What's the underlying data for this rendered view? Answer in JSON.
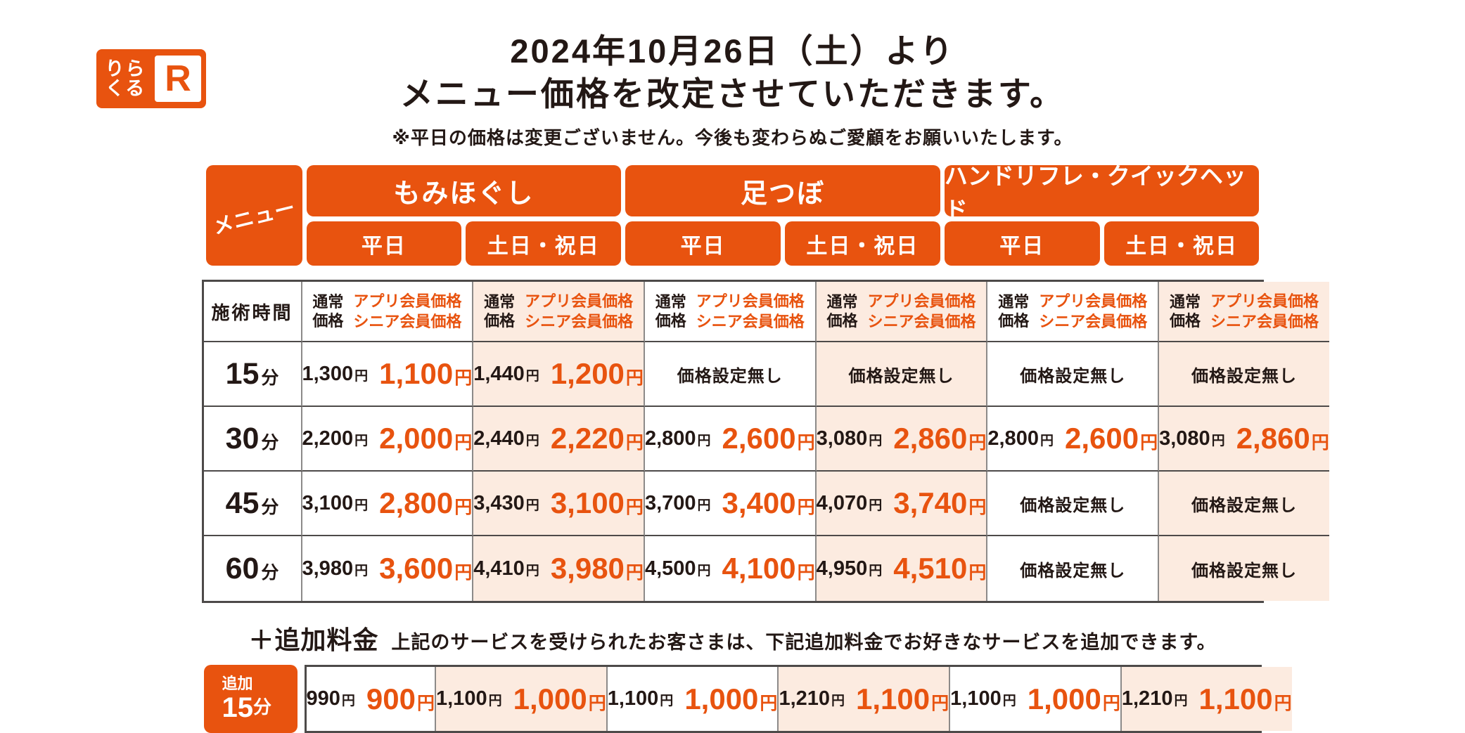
{
  "colors": {
    "accent_orange": "#e8530f",
    "peach_bg": "#fcebe0",
    "text_black": "#231815"
  },
  "logo": {
    "top": "りら",
    "bottom": "くる",
    "mark": "R"
  },
  "header": {
    "title_line1": "2024年10月26日（土）より",
    "title_line2": "メニュー価格を改定させていただきます。",
    "note": "※平日の価格は変更ございません。今後も変わらぬご愛顧をお願いいたします。"
  },
  "menu_header": {
    "corner_label": "メニュー",
    "services": [
      {
        "label": "もみほぐし"
      },
      {
        "label": "足つぼ"
      },
      {
        "label": "ハンドリフレ・クイックヘッド"
      }
    ],
    "day_labels": {
      "weekday": "平日",
      "weekend": "土日・祝日"
    }
  },
  "units": {
    "yen": "円",
    "min": "分"
  },
  "table": {
    "time_header": "施術時間",
    "price_header": {
      "normal_line1": "通常",
      "normal_line2": "価格",
      "member_line1": "アプリ会員価格",
      "member_line2": "シニア会員価格"
    },
    "no_price_label": "価格設定無し",
    "rows": [
      {
        "time": "15",
        "cells": [
          {
            "normal": "1,300",
            "member": "1,100"
          },
          {
            "normal": "1,440",
            "member": "1,200"
          },
          {
            "none": true
          },
          {
            "none": true
          },
          {
            "none": true
          },
          {
            "none": true
          }
        ]
      },
      {
        "time": "30",
        "cells": [
          {
            "normal": "2,200",
            "member": "2,000"
          },
          {
            "normal": "2,440",
            "member": "2,220"
          },
          {
            "normal": "2,800",
            "member": "2,600"
          },
          {
            "normal": "3,080",
            "member": "2,860"
          },
          {
            "normal": "2,800",
            "member": "2,600"
          },
          {
            "normal": "3,080",
            "member": "2,860"
          }
        ]
      },
      {
        "time": "45",
        "cells": [
          {
            "normal": "3,100",
            "member": "2,800"
          },
          {
            "normal": "3,430",
            "member": "3,100"
          },
          {
            "normal": "3,700",
            "member": "3,400"
          },
          {
            "normal": "4,070",
            "member": "3,740"
          },
          {
            "none": true
          },
          {
            "none": true
          }
        ]
      },
      {
        "time": "60",
        "cells": [
          {
            "normal": "3,980",
            "member": "3,600"
          },
          {
            "normal": "4,410",
            "member": "3,980"
          },
          {
            "normal": "4,500",
            "member": "4,100"
          },
          {
            "normal": "4,950",
            "member": "4,510"
          },
          {
            "none": true
          },
          {
            "none": true
          }
        ]
      }
    ]
  },
  "addon": {
    "title": "＋追加料金",
    "description": "上記のサービスを受けられたお客さまは、下記追加料金でお好きなサービスを追加できます。",
    "time_label_small": "追加",
    "time": "15",
    "cells": [
      {
        "normal": "990",
        "member": "900"
      },
      {
        "normal": "1,100",
        "member": "1,000"
      },
      {
        "normal": "1,100",
        "member": "1,000"
      },
      {
        "normal": "1,210",
        "member": "1,100"
      },
      {
        "normal": "1,100",
        "member": "1,000"
      },
      {
        "normal": "1,210",
        "member": "1,100"
      }
    ]
  }
}
